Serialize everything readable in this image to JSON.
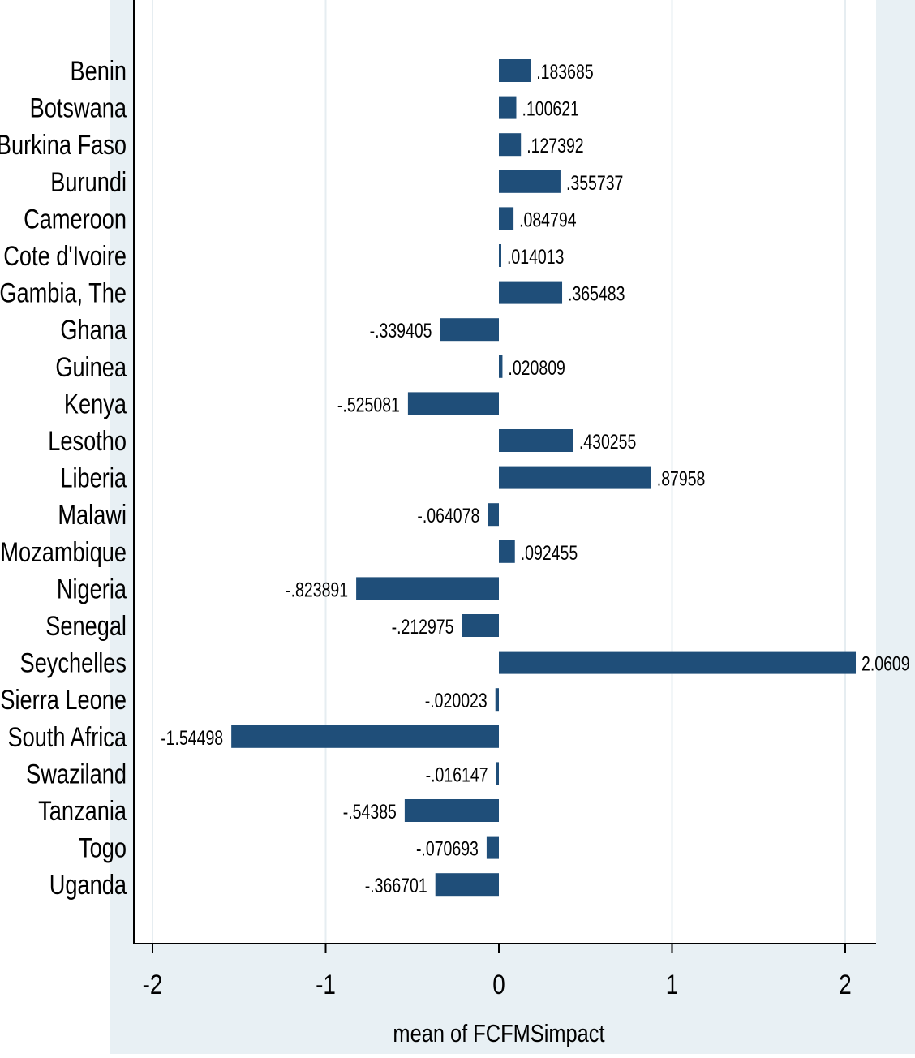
{
  "chart_data": {
    "type": "bar",
    "orientation": "horizontal",
    "title": "",
    "xlabel": "mean of FCFMSimpact",
    "ylabel": "",
    "xlim": [
      -2.13,
      2.17
    ],
    "xticks": [
      -2,
      -1,
      0,
      1,
      2
    ],
    "xtick_labels": [
      "-2",
      "-1",
      "0",
      "1",
      "2"
    ],
    "grid": "vertical lines at x ticks",
    "bar_color": "#1f4e79",
    "background_color": "#e8f0f4",
    "plot_background_color": "#ffffff",
    "gridline_color": "#e6edf1",
    "categories": [
      "Benin",
      "Botswana",
      "Burkina Faso",
      "Burundi",
      "Cameroon",
      "Cote d'Ivoire",
      "Gambia, The",
      "Ghana",
      "Guinea",
      "Kenya",
      "Lesotho",
      "Liberia",
      "Malawi",
      "Mozambique",
      "Nigeria",
      "Senegal",
      "Seychelles",
      "Sierra Leone",
      "South Africa",
      "Swaziland",
      "Tanzania",
      "Togo",
      "Uganda"
    ],
    "values": [
      0.183685,
      0.100621,
      0.127392,
      0.355737,
      0.084794,
      0.014013,
      0.365483,
      -0.339405,
      0.020809,
      -0.525081,
      0.430255,
      0.87958,
      -0.064078,
      0.092455,
      -0.823891,
      -0.212975,
      2.0609,
      -0.020023,
      -1.54498,
      -0.016147,
      -0.54385,
      -0.070693,
      -0.366701
    ],
    "value_labels": [
      ".183685",
      ".100621",
      ".127392",
      ".355737",
      ".084794",
      ".014013",
      ".365483",
      "-.339405",
      ".020809",
      "-.525081",
      ".430255",
      ".87958",
      "-.064078",
      ".092455",
      "-.823891",
      "-.212975",
      "2.0609",
      "-.020023",
      "-1.54498",
      "-.016147",
      "-.54385",
      "-.070693",
      "-.366701"
    ]
  }
}
